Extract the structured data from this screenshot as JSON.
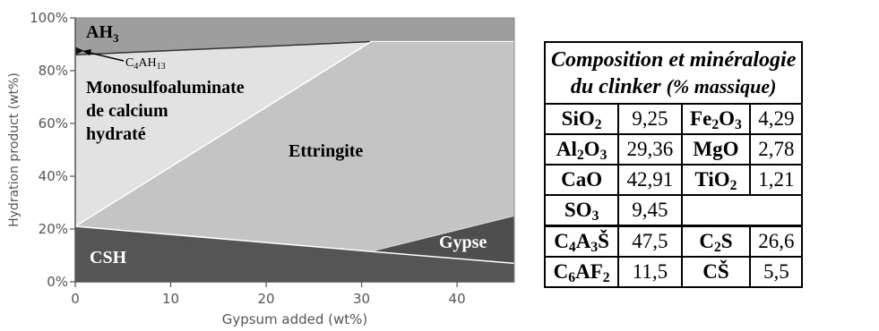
{
  "chart_data": {
    "type": "area",
    "xlabel": "Gypsum added (wt%)",
    "ylabel": "Hydration product (wt%)",
    "xlim": [
      0,
      46
    ],
    "ylim": [
      0,
      100
    ],
    "x_ticks": [
      0,
      10,
      20,
      30,
      40
    ],
    "y_ticks": [
      0,
      20,
      40,
      60,
      80,
      100
    ],
    "y_tick_labels": [
      "0%",
      "20%",
      "40%",
      "60%",
      "80%",
      "100%"
    ],
    "colors": {
      "CSH": "#555555",
      "Gypse": "#4e4e4e",
      "Ettringite": "#c4c4c4",
      "Monosulfoaluminate": "#e2e2e2",
      "AH3": "#9e9e9e",
      "C4AH13": "#111111"
    },
    "boundaries": {
      "csh_top": {
        "x": [
          0,
          31,
          46
        ],
        "y": [
          21,
          11.5,
          7
        ]
      },
      "gypse_top": {
        "x": [
          31,
          46
        ],
        "y": [
          11.5,
          25
        ]
      },
      "ettringite_top": {
        "x": [
          0,
          31,
          46
        ],
        "y": [
          21,
          91,
          91
        ]
      },
      "mono_top": {
        "x": [
          0,
          31,
          46
        ],
        "y": [
          86,
          91,
          91
        ]
      },
      "c4ah13_top": {
        "x": [
          0,
          0.8
        ],
        "y": [
          88,
          87
        ]
      },
      "ah3_top": {
        "x": [
          0,
          46
        ],
        "y": [
          100,
          100
        ]
      }
    },
    "region_labels": {
      "AH3": "AH",
      "AH3_sub": "3",
      "C4AH13_a": "C",
      "C4AH13_b": "4",
      "C4AH13_c": "AH",
      "C4AH13_d": "13",
      "mono_line1": "Monosulfoaluminate",
      "mono_line2": "de calcium",
      "mono_line3": "hydraté",
      "ettringite": "Ettringite",
      "csh": "CSH",
      "gypse": "Gypse"
    }
  },
  "table": {
    "title_line1": "Composition et minéralogie",
    "title_line2": "du clinker",
    "title_line2_sub": "(% massique)",
    "rows": [
      {
        "k1": "SiO",
        "k1s": "2",
        "k1t": "",
        "v1": "9,25",
        "k2": "Fe",
        "k2s": "2",
        "k2t": "O",
        "k2u": "3",
        "v2": "4,29"
      },
      {
        "k1": "Al",
        "k1s": "2",
        "k1t": "O",
        "k1u": "3",
        "v1": "29,36",
        "k2": "MgO",
        "v2": "2,78"
      },
      {
        "k1": "CaO",
        "v1": "42,91",
        "k2": "TiO",
        "k2s": "2",
        "v2": "1,21"
      },
      {
        "k1": "SO",
        "k1s": "3",
        "v1": "9,45"
      }
    ],
    "mineral_rows": [
      {
        "k1": "C",
        "k1s": "4",
        "k1t": "A",
        "k1u": "3",
        "k1v": "Š",
        "v1": "47,5",
        "k2": "C",
        "k2s": "2",
        "k2t": "S",
        "v2": "26,6"
      },
      {
        "k1": "C",
        "k1s": "6",
        "k1t": "AF",
        "k1u": "2",
        "v1": "11,5",
        "k2": "CŠ",
        "v2": "5,5"
      }
    ]
  }
}
